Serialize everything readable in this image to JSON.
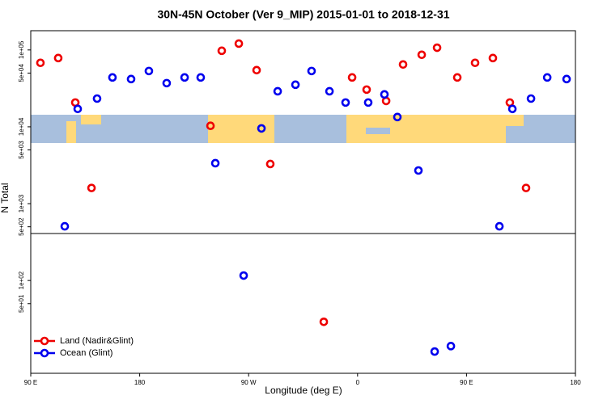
{
  "chart_data": {
    "type": "scatter",
    "title": "30N-45N October (Ver 9_MIP)   2015-01-01 to 2018-12-31",
    "x_label": "Longitude (deg E)",
    "y_label": "N Total",
    "ylog": true,
    "legend": "lower left",
    "xlim": [
      90,
      540
    ],
    "xticks": [
      {
        "value": 90,
        "label": "90 E"
      },
      180,
      {
        "value": 270,
        "label": "90 W"
      },
      {
        "value": 360,
        "label": "0"
      },
      {
        "value": 450,
        "label": "90 E"
      },
      {
        "value": 540,
        "label": "180"
      }
    ],
    "ylim": [
      6.2,
      178000
    ],
    "yticks": [
      {
        "value": 100000,
        "label": "1e+05"
      },
      {
        "value": 50000,
        "label": "5e+04"
      },
      {
        "value": 10000,
        "label": "1e+04"
      },
      {
        "value": 5000,
        "label": "5e+03"
      },
      {
        "value": 1000,
        "label": "1e+03"
      },
      {
        "value": 500,
        "label": "5e+02"
      },
      {
        "value": 100,
        "label": "1e+02"
      },
      {
        "value": 50,
        "label": "5e+01"
      }
    ],
    "series": [
      {
        "name": "Land (Nadir&Glint)",
        "color": "#ee0000",
        "x": [
          98.0,
          112.7,
          126.8,
          140.2,
          238.5,
          247.8,
          261.9,
          276.6,
          287.9,
          332.1,
          355.5,
          367.5,
          383.6,
          397.6,
          413.0,
          425.7,
          442.4,
          457.1,
          471.8,
          485.8,
          499.2
        ],
        "values": [
          68000,
          78500,
          20700,
          1600,
          10300,
          97600,
          121000,
          54600,
          3280,
          29,
          43900,
          30500,
          21700,
          64700,
          86500,
          107000,
          43900,
          68000,
          78500,
          20700,
          1600
        ]
      },
      {
        "name": "Ocean (Glint)",
        "color": "#0000ee",
        "x": [
          118.1,
          128.8,
          144.8,
          157.5,
          172.9,
          187.6,
          202.3,
          217.1,
          230.4,
          242.5,
          265.9,
          280.6,
          294.0,
          308.7,
          322.0,
          336.8,
          350.1,
          368.8,
          382.2,
          392.9,
          410.3,
          423.7,
          437.1,
          477.2,
          487.9,
          503.3,
          516.7,
          532.7
        ],
        "values": [
          507,
          17100,
          23300,
          43900,
          41800,
          53200,
          37000,
          43900,
          43900,
          3360,
          116,
          9530,
          29000,
          35300,
          53200,
          29000,
          20700,
          20700,
          26400,
          13400,
          2700,
          11.9,
          14,
          507,
          17100,
          23300,
          43900,
          41800
        ]
      }
    ]
  }
}
